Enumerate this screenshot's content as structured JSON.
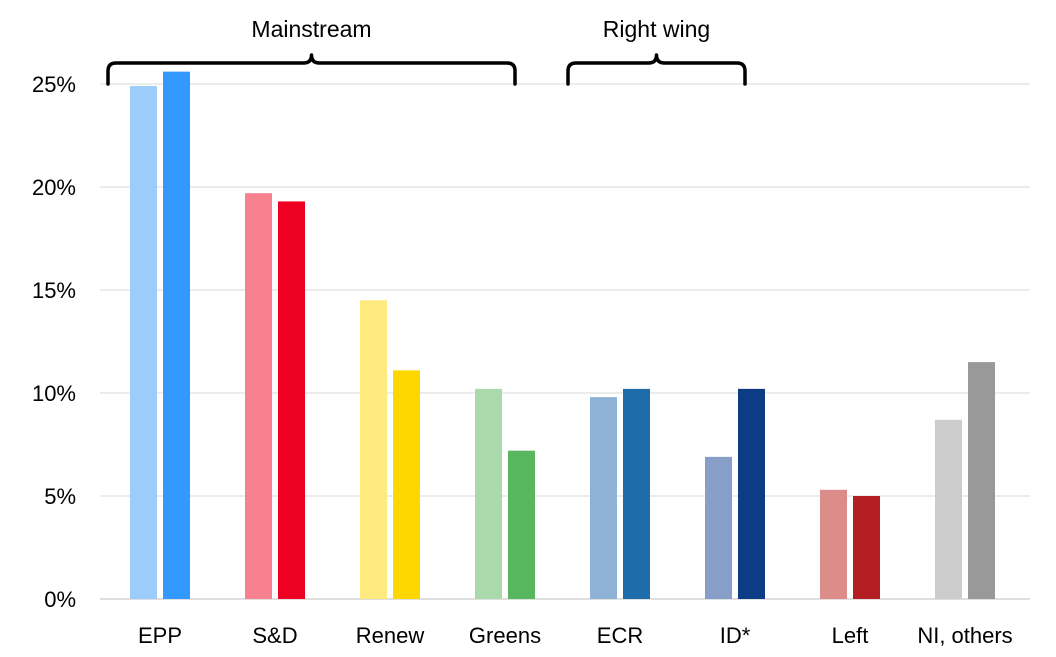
{
  "chart_data": {
    "type": "bar",
    "title": "",
    "xlabel": "",
    "ylabel": "",
    "ylim": [
      0,
      0.25
    ],
    "y_ticks": [
      0,
      0.05,
      0.1,
      0.15,
      0.2,
      0.25
    ],
    "y_tick_labels": [
      "0%",
      "5%",
      "10%",
      "15%",
      "20%",
      "25%"
    ],
    "grid": true,
    "categories": [
      "EPP",
      "S&D",
      "Renew",
      "Greens",
      "ECR",
      "ID*",
      "Left",
      "NI, others"
    ],
    "series": [
      {
        "values": [
          0.249,
          0.197,
          0.145,
          0.102,
          0.098,
          0.069,
          0.053,
          0.087
        ],
        "colors": [
          "#9dcbfb",
          "#f7818f",
          "#ffea7f",
          "#aad9ab",
          "#8db2d6",
          "#869ec8",
          "#dc8d8a",
          "#cccccc"
        ]
      },
      {
        "values": [
          0.256,
          0.193,
          0.111,
          0.072,
          0.102,
          0.102,
          0.05,
          0.115
        ],
        "colors": [
          "#3399ff",
          "#ee0022",
          "#ffd700",
          "#57b65e",
          "#1f6cab",
          "#0e3c84",
          "#b31e22",
          "#999999"
        ]
      }
    ],
    "groups": [
      {
        "label": "Mainstream",
        "start": "EPP",
        "end": "Greens"
      },
      {
        "label": "Right wing",
        "start": "ECR",
        "end": "ID*"
      }
    ]
  }
}
